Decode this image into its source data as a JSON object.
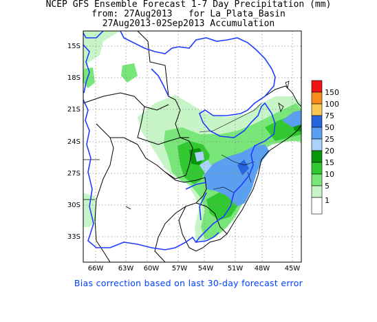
{
  "title": {
    "line1": "NCEP GFS Ensemble Forecast 1-7 Day Precipitation (mm)",
    "line2": "from: 27Aug2013   for La_Plata_Basin",
    "line3": "27Aug2013-02Sep2013 Accumulation"
  },
  "footer": "Bias correction based on last 30-day forecast error",
  "axes": {
    "lat_labels": [
      "15S",
      "18S",
      "21S",
      "24S",
      "27S",
      "30S",
      "33S"
    ],
    "lon_labels": [
      "66W",
      "63W",
      "60W",
      "57W",
      "54W",
      "51W",
      "48W",
      "45W"
    ]
  },
  "legend": {
    "levels": [
      "1",
      "5",
      "10",
      "15",
      "20",
      "25",
      "50",
      "75",
      "100",
      "150"
    ],
    "colors": [
      "#ffffff",
      "#c8f5c8",
      "#78e678",
      "#32c832",
      "#0a960a",
      "#aad2fa",
      "#5a9ff0",
      "#2864dc",
      "#fac850",
      "#fa8c1e",
      "#f01414"
    ]
  },
  "colors": {
    "basin_outline": "#1e3cff",
    "borders": "#000000",
    "grid": "#8c8c8c"
  }
}
